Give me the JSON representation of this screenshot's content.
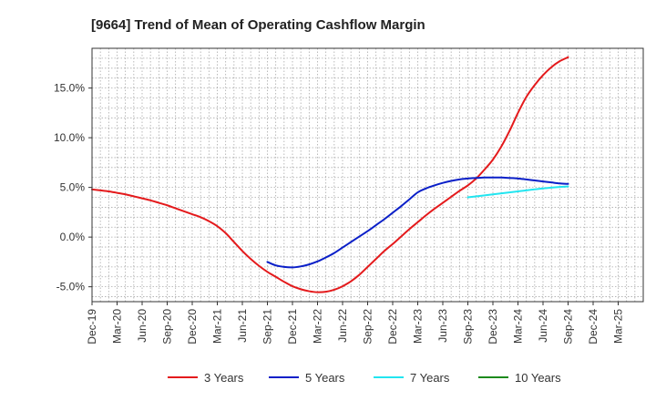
{
  "chart_data": {
    "type": "line",
    "title": "[9664]  Trend of Mean of Operating Cashflow Margin",
    "xlabel": "",
    "ylabel": "",
    "ylim": [
      -6.5,
      19.0
    ],
    "y_ticks": [
      -5.0,
      0.0,
      5.0,
      10.0,
      15.0
    ],
    "y_tick_labels": [
      "-5.0%",
      "0.0%",
      "5.0%",
      "10.0%",
      "15.0%"
    ],
    "x_start": "Dec-19",
    "x_tick_labels": [
      "Dec-19",
      "Mar-20",
      "Jun-20",
      "Sep-20",
      "Dec-20",
      "Mar-21",
      "Jun-21",
      "Sep-21",
      "Dec-21",
      "Mar-22",
      "Jun-22",
      "Sep-22",
      "Dec-22",
      "Mar-23",
      "Jun-23",
      "Sep-23",
      "Dec-23",
      "Mar-24",
      "Jun-24",
      "Sep-24",
      "Dec-24",
      "Mar-25"
    ],
    "grid": true,
    "legend_position": "bottom",
    "series": [
      {
        "name": "3 Years",
        "color": "#e41a1c",
        "points": [
          [
            "Dec-19",
            4.8
          ],
          [
            "Jan-20",
            4.7
          ],
          [
            "Feb-20",
            4.6
          ],
          [
            "Mar-20",
            4.45
          ],
          [
            "Apr-20",
            4.3
          ],
          [
            "May-20",
            4.1
          ],
          [
            "Jun-20",
            3.9
          ],
          [
            "Jul-20",
            3.7
          ],
          [
            "Aug-20",
            3.45
          ],
          [
            "Sep-20",
            3.2
          ],
          [
            "Oct-20",
            2.9
          ],
          [
            "Nov-20",
            2.6
          ],
          [
            "Dec-20",
            2.3
          ],
          [
            "Jan-21",
            2.0
          ],
          [
            "Feb-21",
            1.6
          ],
          [
            "Mar-21",
            1.1
          ],
          [
            "Apr-21",
            0.4
          ],
          [
            "May-21",
            -0.5
          ],
          [
            "Jun-21",
            -1.4
          ],
          [
            "Jul-21",
            -2.2
          ],
          [
            "Aug-21",
            -2.9
          ],
          [
            "Sep-21",
            -3.5
          ],
          [
            "Oct-21",
            -4.0
          ],
          [
            "Nov-21",
            -4.5
          ],
          [
            "Dec-21",
            -4.95
          ],
          [
            "Jan-22",
            -5.25
          ],
          [
            "Feb-22",
            -5.45
          ],
          [
            "Mar-22",
            -5.55
          ],
          [
            "Apr-22",
            -5.5
          ],
          [
            "May-22",
            -5.3
          ],
          [
            "Jun-22",
            -4.95
          ],
          [
            "Jul-22",
            -4.45
          ],
          [
            "Aug-22",
            -3.8
          ],
          [
            "Sep-22",
            -3.0
          ],
          [
            "Oct-22",
            -2.2
          ],
          [
            "Nov-22",
            -1.4
          ],
          [
            "Dec-22",
            -0.7
          ],
          [
            "Jan-23",
            0.05
          ],
          [
            "Feb-23",
            0.8
          ],
          [
            "Mar-23",
            1.5
          ],
          [
            "Apr-23",
            2.2
          ],
          [
            "May-23",
            2.85
          ],
          [
            "Jun-23",
            3.45
          ],
          [
            "Jul-23",
            4.05
          ],
          [
            "Aug-23",
            4.65
          ],
          [
            "Sep-23",
            5.2
          ],
          [
            "Oct-23",
            5.9
          ],
          [
            "Nov-23",
            6.8
          ],
          [
            "Dec-23",
            7.8
          ],
          [
            "Jan-24",
            9.1
          ],
          [
            "Feb-24",
            10.7
          ],
          [
            "Mar-24",
            12.5
          ],
          [
            "Apr-24",
            14.1
          ],
          [
            "May-24",
            15.3
          ],
          [
            "Jun-24",
            16.3
          ],
          [
            "Jul-24",
            17.1
          ],
          [
            "Aug-24",
            17.7
          ],
          [
            "Sep-24",
            18.1
          ]
        ]
      },
      {
        "name": "5 Years",
        "color": "#0a1fc8",
        "points": [
          [
            "Sep-21",
            -2.5
          ],
          [
            "Oct-21",
            -2.85
          ],
          [
            "Nov-21",
            -3.0
          ],
          [
            "Dec-21",
            -3.05
          ],
          [
            "Jan-22",
            -2.95
          ],
          [
            "Feb-22",
            -2.75
          ],
          [
            "Mar-22",
            -2.45
          ],
          [
            "Apr-22",
            -2.05
          ],
          [
            "May-22",
            -1.6
          ],
          [
            "Jun-22",
            -1.05
          ],
          [
            "Jul-22",
            -0.5
          ],
          [
            "Aug-22",
            0.05
          ],
          [
            "Sep-22",
            0.6
          ],
          [
            "Oct-22",
            1.2
          ],
          [
            "Nov-22",
            1.8
          ],
          [
            "Dec-22",
            2.45
          ],
          [
            "Jan-23",
            3.1
          ],
          [
            "Feb-23",
            3.8
          ],
          [
            "Mar-23",
            4.5
          ],
          [
            "Apr-23",
            4.9
          ],
          [
            "May-23",
            5.2
          ],
          [
            "Jun-23",
            5.45
          ],
          [
            "Jul-23",
            5.65
          ],
          [
            "Aug-23",
            5.8
          ],
          [
            "Sep-23",
            5.9
          ],
          [
            "Oct-23",
            5.95
          ],
          [
            "Nov-23",
            6.0
          ],
          [
            "Dec-23",
            6.0
          ],
          [
            "Jan-24",
            6.0
          ],
          [
            "Feb-24",
            5.95
          ],
          [
            "Mar-24",
            5.9
          ],
          [
            "Apr-24",
            5.8
          ],
          [
            "May-24",
            5.7
          ],
          [
            "Jun-24",
            5.6
          ],
          [
            "Jul-24",
            5.5
          ],
          [
            "Aug-24",
            5.4
          ],
          [
            "Sep-24",
            5.35
          ]
        ]
      },
      {
        "name": "7 Years",
        "color": "#22e5f0",
        "points": [
          [
            "Sep-23",
            4.0
          ],
          [
            "Dec-23",
            4.3
          ],
          [
            "Mar-24",
            4.6
          ],
          [
            "Jun-24",
            4.9
          ],
          [
            "Sep-24",
            5.1
          ]
        ]
      },
      {
        "name": "10 Years",
        "color": "#1c8a1c",
        "points": []
      }
    ]
  }
}
